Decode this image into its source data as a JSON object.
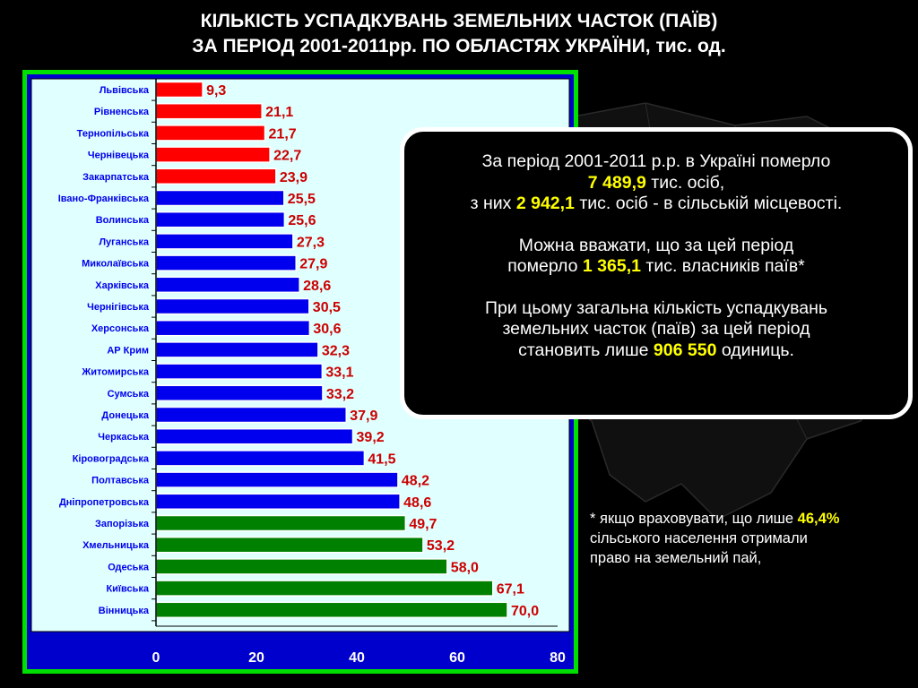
{
  "title": {
    "line1": "КІЛЬКІСТЬ УСПАДКУВАНЬ ЗЕМЕЛЬНИХ ЧАСТОК (ПАЇВ)",
    "line2": "ЗА ПЕРІОД 2001-2011рр. ПО ОБЛАСТЯХ УКРАЇНИ, тис. од."
  },
  "colors": {
    "red_group": "#ff0000",
    "blue_group": "#0000ee",
    "green_group": "#008000",
    "highlight": "#ffff00",
    "plot_bg": "#e0ffff",
    "frame": "#00e000",
    "label_value": "#cc0000"
  },
  "chart_data": {
    "type": "bar",
    "orientation": "horizontal",
    "categories": [
      "Львівська",
      "Рівненська",
      "Тернопільська",
      "Чернівецька",
      "Закарпатська",
      "Івано-Франківська",
      "Волинська",
      "Луганська",
      "Миколаївська",
      "Харківська",
      "Чернігівська",
      "Херсонська",
      "АР Крим",
      "Житомирська",
      "Сумська",
      "Донецька",
      "Черкаська",
      "Кіровоградська",
      "Полтавська",
      "Дніпропетровська",
      "Запорізька",
      "Хмельницька",
      "Одеська",
      "Київська",
      "Вінницька"
    ],
    "values": [
      9.3,
      21.1,
      21.7,
      22.7,
      23.9,
      25.5,
      25.6,
      27.3,
      27.9,
      28.6,
      30.5,
      30.6,
      32.3,
      33.1,
      33.2,
      37.9,
      39.2,
      41.5,
      48.2,
      48.6,
      49.7,
      53.2,
      58.0,
      67.1,
      70.0
    ],
    "value_labels": [
      "9,3",
      "21,1",
      "21,7",
      "22,7",
      "23,9",
      "25,5",
      "25,6",
      "27,3",
      "27,9",
      "28,6",
      "30,5",
      "30,6",
      "32,3",
      "33,1",
      "33,2",
      "37,9",
      "39,2",
      "41,5",
      "48,2",
      "48,6",
      "49,7",
      "53,2",
      "58,0",
      "67,1",
      "70,0"
    ],
    "color_groups": [
      "red",
      "red",
      "red",
      "red",
      "red",
      "blue",
      "blue",
      "blue",
      "blue",
      "blue",
      "blue",
      "blue",
      "blue",
      "blue",
      "blue",
      "blue",
      "blue",
      "blue",
      "blue",
      "blue",
      "green",
      "green",
      "green",
      "green",
      "green"
    ],
    "xlim": [
      0,
      80
    ],
    "x_ticks": [
      "0",
      "20",
      "40",
      "60",
      "80"
    ],
    "grid": false,
    "legend": "none"
  },
  "info": {
    "p1_a": "За період 2001-2011 р.р. в Україні померло",
    "p1_num1": "7 489,9",
    "p1_b": " тис. осіб,",
    "p1_c": "з них ",
    "p1_num2": "2 942,1",
    "p1_d": " тис. осіб - в сільській місцевості.",
    "p2_a": "Можна вважати, що за цей період",
    "p2_b": "померло ",
    "p2_num": "1 365,1",
    "p2_c": " тис. власників паїв*",
    "p3_a": "При цьому загальна кількість успадкувань",
    "p3_b": "земельних часток (паїв) за цей період",
    "p3_c": "становить лише ",
    "p3_num": "906 550",
    "p3_d": " одиниць."
  },
  "footnote": {
    "a": "* якщо враховувати, що лише ",
    "pct": "46,4%",
    "b": "сільського населення отримали",
    "c": "право на земельний пай,"
  }
}
